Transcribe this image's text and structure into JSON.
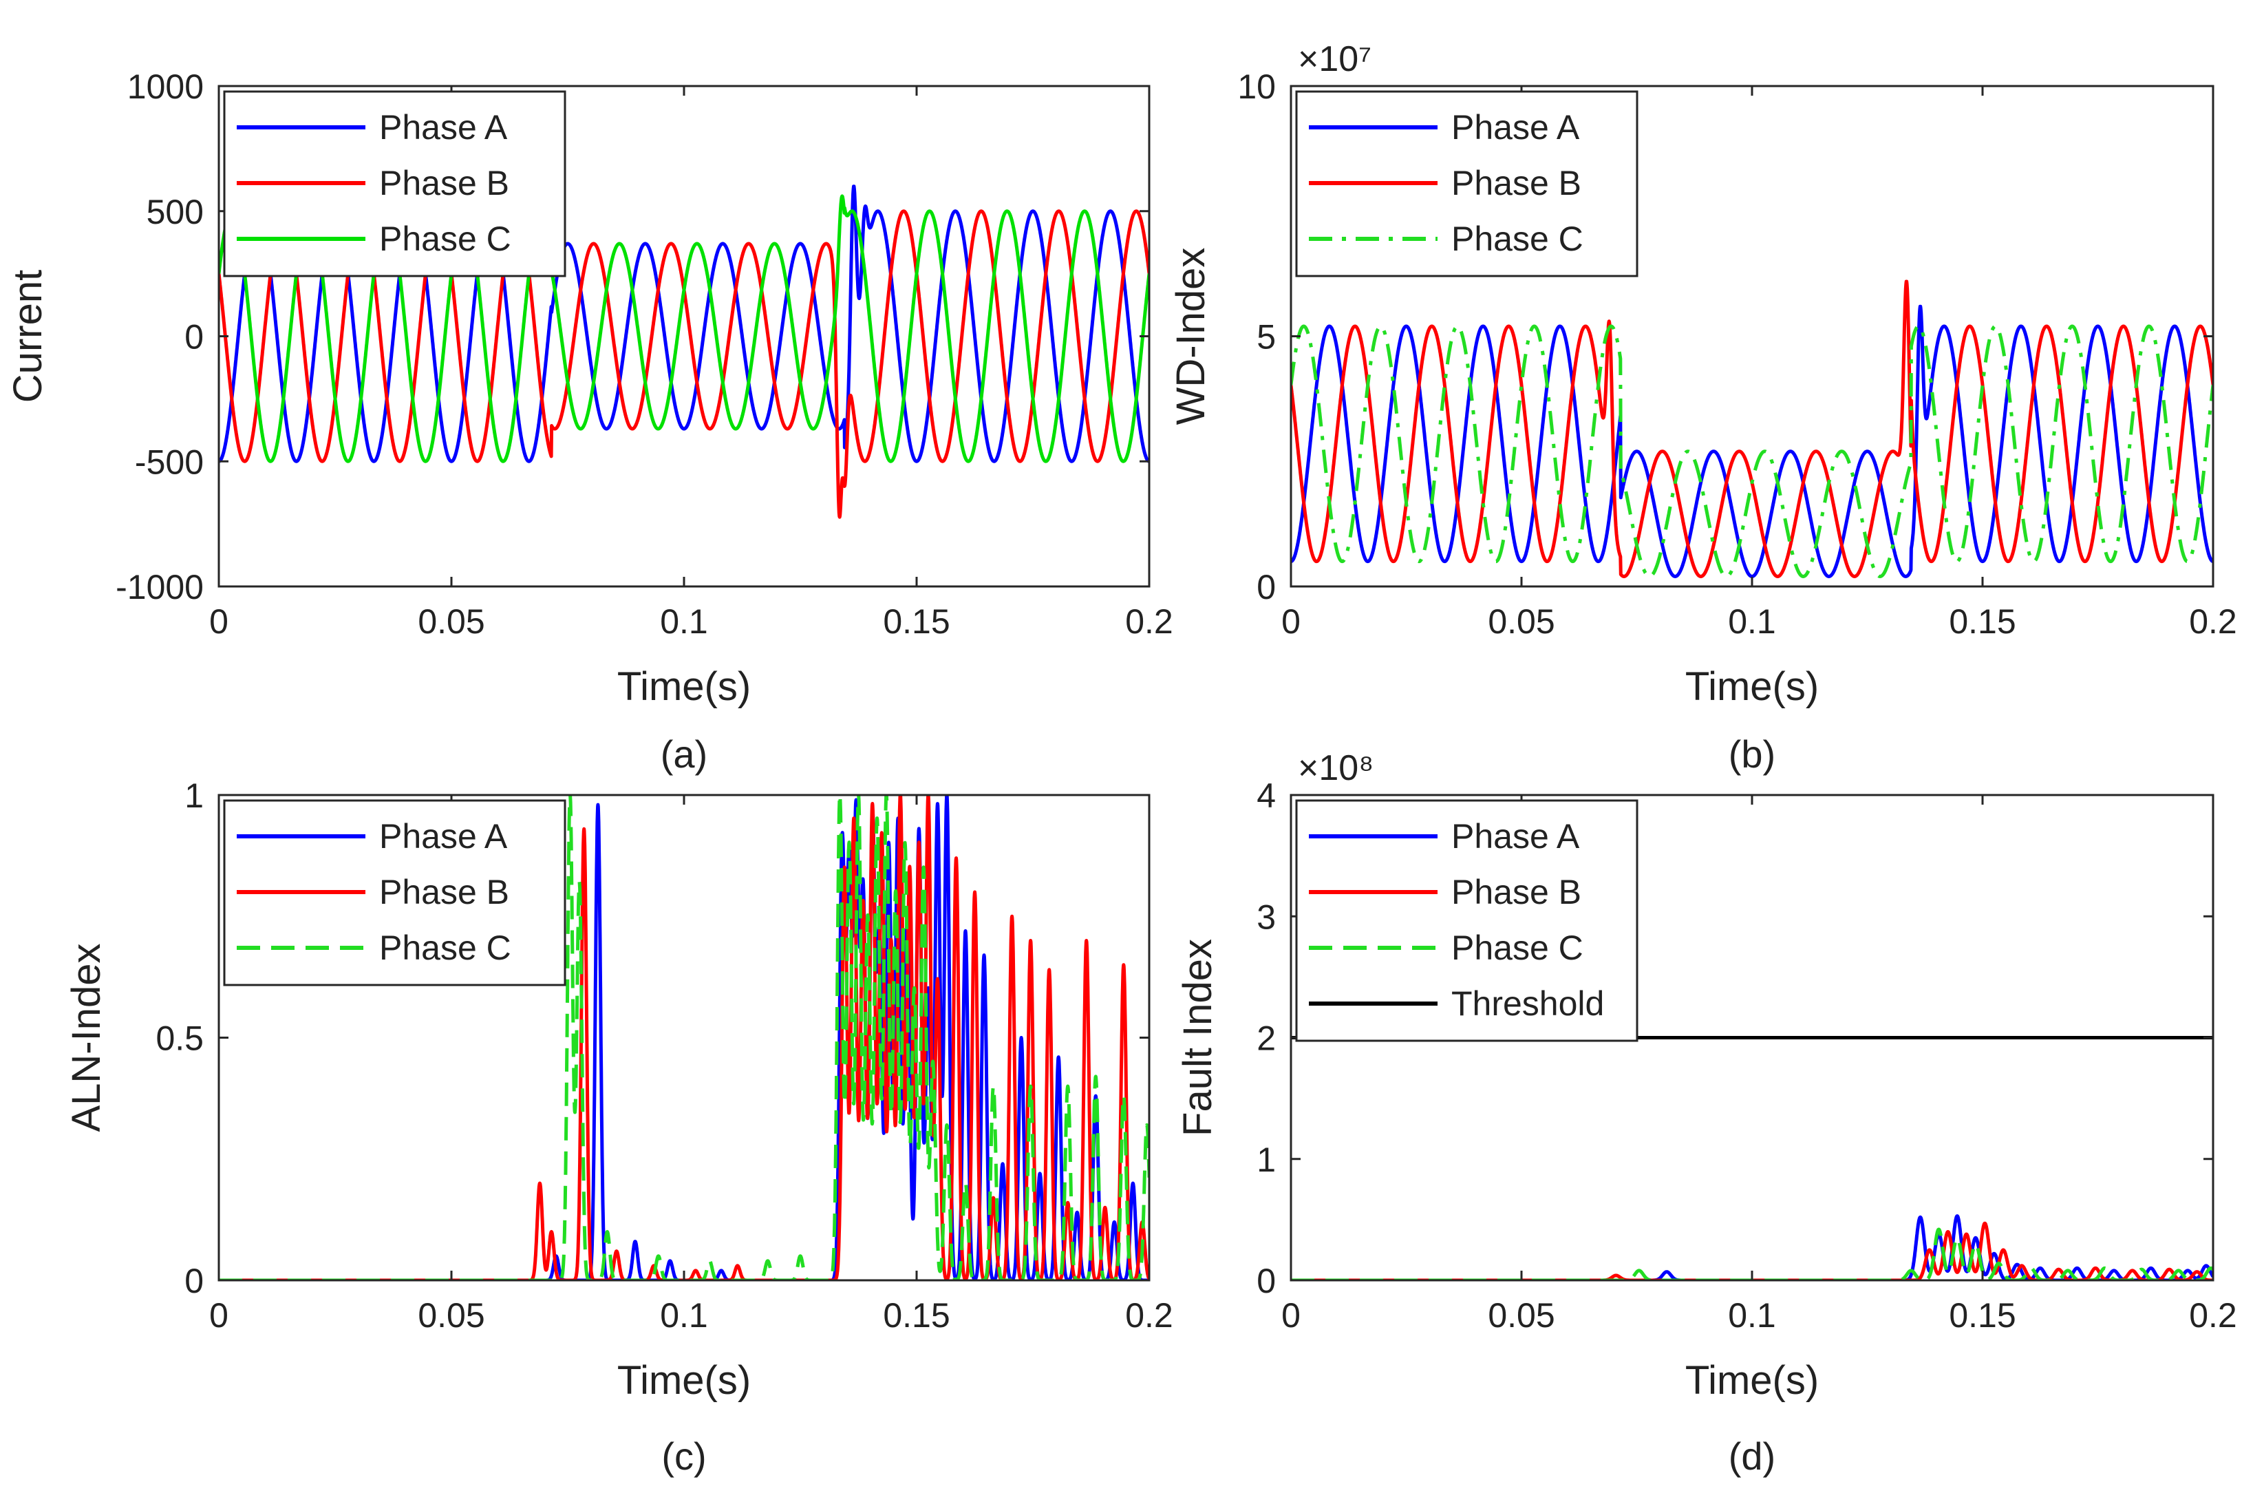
{
  "figure": {
    "panel_labels": [
      "(a)",
      "(b)",
      "(c)",
      "(d)"
    ]
  },
  "chart_data": [
    {
      "id": "a",
      "type": "line",
      "caption": "(a)",
      "xlabel": "Time(s)",
      "ylabel": "Current",
      "xlim": [
        0,
        0.2
      ],
      "ylim": [
        -1000,
        1000
      ],
      "xticks": [
        0,
        0.05,
        0.1,
        0.15,
        0.2
      ],
      "xtick_labels": [
        "0",
        "0.05",
        "0.1",
        "0.15",
        "0.2"
      ],
      "yticks": [
        -1000,
        -500,
        0,
        500,
        1000
      ],
      "ytick_labels": [
        "-1000",
        "-500",
        "0",
        "500",
        "1000"
      ],
      "exponent": "",
      "legend_position": "top-left",
      "series": [
        {
          "name": "Phase A",
          "color": "#0000ff",
          "dash": "solid",
          "model": "three_phase",
          "phase_deg": -90,
          "freq": 60,
          "segments": [
            {
              "t0": 0,
              "t1": 0.0715,
              "amp": 500,
              "offset": 0
            },
            {
              "t0": 0.0715,
              "t1": 0.1345,
              "amp": 370,
              "offset": 0
            },
            {
              "t0": 0.1345,
              "t1": 0.2,
              "amp": 500,
              "offset": 0
            }
          ],
          "spikes": [
            {
              "t": 0.1365,
              "v": 600
            },
            {
              "t": 0.139,
              "v": 520
            }
          ]
        },
        {
          "name": "Phase B",
          "color": "#ff0000",
          "dash": "solid",
          "model": "three_phase",
          "phase_deg": 150,
          "freq": 60,
          "segments": [
            {
              "t0": 0,
              "t1": 0.0715,
              "amp": 500,
              "offset": 0
            },
            {
              "t0": 0.0715,
              "t1": 0.1345,
              "amp": 370,
              "offset": 0
            },
            {
              "t0": 0.1345,
              "t1": 0.2,
              "amp": 500,
              "offset": 0
            }
          ],
          "spikes": [
            {
              "t": 0.1335,
              "v": -760
            },
            {
              "t": 0.1345,
              "v": -600
            }
          ]
        },
        {
          "name": "Phase C",
          "color": "#00e000",
          "dash": "solid",
          "model": "three_phase",
          "phase_deg": 30,
          "freq": 60,
          "segments": [
            {
              "t0": 0,
              "t1": 0.0715,
              "amp": 500,
              "offset": 0
            },
            {
              "t0": 0.0715,
              "t1": 0.1345,
              "amp": 370,
              "offset": 0
            },
            {
              "t0": 0.1345,
              "t1": 0.2,
              "amp": 500,
              "offset": 0
            }
          ],
          "spikes": [
            {
              "t": 0.134,
              "v": 560
            }
          ]
        }
      ]
    },
    {
      "id": "b",
      "type": "line",
      "caption": "(b)",
      "xlabel": "Time(s)",
      "ylabel": "WD-Index",
      "xlim": [
        0,
        0.2
      ],
      "ylim": [
        0,
        10
      ],
      "xticks": [
        0,
        0.05,
        0.1,
        0.15,
        0.2
      ],
      "xtick_labels": [
        "0",
        "0.05",
        "0.1",
        "0.15",
        "0.2"
      ],
      "yticks": [
        0,
        5,
        10
      ],
      "ytick_labels": [
        "0",
        "5",
        "10"
      ],
      "exponent": "×10⁷",
      "legend_position": "top-left",
      "series": [
        {
          "name": "Phase A",
          "color": "#0000ff",
          "dash": "solid",
          "model": "three_phase",
          "phase_deg": -90,
          "freq": 60,
          "segments": [
            {
              "t0": 0,
              "t1": 0.0715,
              "amp": 2.35,
              "offset": 2.85
            },
            {
              "t0": 0.0715,
              "t1": 0.1345,
              "amp": 1.25,
              "offset": 1.45
            },
            {
              "t0": 0.1345,
              "t1": 0.2,
              "amp": 2.35,
              "offset": 2.85
            }
          ],
          "spikes": [
            {
              "t": 0.1365,
              "v": 5.6
            }
          ]
        },
        {
          "name": "Phase B",
          "color": "#ff0000",
          "dash": "solid",
          "model": "three_phase",
          "phase_deg": 150,
          "freq": 60,
          "segments": [
            {
              "t0": 0,
              "t1": 0.0715,
              "amp": 2.35,
              "offset": 2.85
            },
            {
              "t0": 0.0715,
              "t1": 0.1345,
              "amp": 1.25,
              "offset": 1.45
            },
            {
              "t0": 0.1345,
              "t1": 0.2,
              "amp": 2.35,
              "offset": 2.85
            }
          ],
          "spikes": [
            {
              "t": 0.1335,
              "v": 6.1
            },
            {
              "t": 0.069,
              "v": 5.3
            }
          ]
        },
        {
          "name": "Phase C",
          "color": "#22dd22",
          "dash": "dashdot",
          "model": "three_phase",
          "phase_deg": 30,
          "freq": 60,
          "segments": [
            {
              "t0": 0,
              "t1": 0.0715,
              "amp": 2.35,
              "offset": 2.85
            },
            {
              "t0": 0.0715,
              "t1": 0.1345,
              "amp": 1.25,
              "offset": 1.45
            },
            {
              "t0": 0.1345,
              "t1": 0.2,
              "amp": 2.35,
              "offset": 2.85
            }
          ],
          "spikes": []
        }
      ]
    },
    {
      "id": "c",
      "type": "line",
      "caption": "(c)",
      "xlabel": "Time(s)",
      "ylabel": "ALN-Index",
      "xlim": [
        0,
        0.2
      ],
      "ylim": [
        0,
        1
      ],
      "xticks": [
        0,
        0.05,
        0.1,
        0.15,
        0.2
      ],
      "xtick_labels": [
        "0",
        "0.05",
        "0.1",
        "0.15",
        "0.2"
      ],
      "yticks": [
        0,
        0.5,
        1
      ],
      "ytick_labels": [
        "0",
        "0.5",
        "1"
      ],
      "exponent": "",
      "legend_position": "top-left",
      "series": [
        {
          "name": "Phase A",
          "color": "#0000ff",
          "dash": "solid",
          "model": "peaks",
          "width": 0.00055,
          "peaks": [
            [
              0.0725,
              0.05
            ],
            [
              0.0815,
              0.98
            ],
            [
              0.0895,
              0.08
            ],
            [
              0.097,
              0.04
            ],
            [
              0.108,
              0.02
            ],
            [
              0.134,
              0.9
            ],
            [
              0.1355,
              0.85
            ],
            [
              0.137,
              0.95
            ],
            [
              0.1385,
              0.8
            ],
            [
              0.1405,
              0.95
            ],
            [
              0.142,
              0.7
            ],
            [
              0.144,
              0.9
            ],
            [
              0.146,
              0.95
            ],
            [
              0.148,
              0.75
            ],
            [
              0.1505,
              0.93
            ],
            [
              0.1525,
              0.6
            ],
            [
              0.1545,
              0.98
            ],
            [
              0.1565,
              1.0
            ],
            [
              0.1605,
              0.72
            ],
            [
              0.1645,
              0.67
            ],
            [
              0.1685,
              0.24
            ],
            [
              0.1725,
              0.5
            ],
            [
              0.1765,
              0.22
            ],
            [
              0.1805,
              0.46
            ],
            [
              0.1845,
              0.14
            ],
            [
              0.1885,
              0.38
            ],
            [
              0.1925,
              0.12
            ],
            [
              0.1965,
              0.2
            ]
          ]
        },
        {
          "name": "Phase B",
          "color": "#ff0000",
          "dash": "solid",
          "model": "peaks",
          "width": 0.00055,
          "peaks": [
            [
              0.069,
              0.2
            ],
            [
              0.0715,
              0.1
            ],
            [
              0.0785,
              0.93
            ],
            [
              0.0855,
              0.06
            ],
            [
              0.0935,
              0.03
            ],
            [
              0.1025,
              0.02
            ],
            [
              0.1115,
              0.03
            ],
            [
              0.1345,
              0.85
            ],
            [
              0.1365,
              0.95
            ],
            [
              0.1385,
              0.78
            ],
            [
              0.1405,
              0.98
            ],
            [
              0.1425,
              0.92
            ],
            [
              0.1445,
              0.7
            ],
            [
              0.1465,
              1.0
            ],
            [
              0.1485,
              0.85
            ],
            [
              0.1505,
              0.9
            ],
            [
              0.1525,
              1.0
            ],
            [
              0.1545,
              0.62
            ],
            [
              0.1585,
              0.87
            ],
            [
              0.1625,
              0.8
            ],
            [
              0.1665,
              0.17
            ],
            [
              0.1705,
              0.75
            ],
            [
              0.1745,
              0.7
            ],
            [
              0.1785,
              0.64
            ],
            [
              0.1825,
              0.16
            ],
            [
              0.1865,
              0.7
            ],
            [
              0.1905,
              0.15
            ],
            [
              0.1945,
              0.65
            ],
            [
              0.1985,
              0.12
            ]
          ]
        },
        {
          "name": "Phase C",
          "color": "#22dd22",
          "dash": "dashed",
          "model": "peaks",
          "width": 0.00055,
          "peaks": [
            [
              0.0755,
              1.0
            ],
            [
              0.0775,
              0.82
            ],
            [
              0.0835,
              0.1
            ],
            [
              0.0945,
              0.05
            ],
            [
              0.1055,
              0.04
            ],
            [
              0.118,
              0.04
            ],
            [
              0.125,
              0.05
            ],
            [
              0.1335,
              1.0
            ],
            [
              0.1355,
              0.9
            ],
            [
              0.1375,
              1.0
            ],
            [
              0.1395,
              0.75
            ],
            [
              0.1415,
              0.95
            ],
            [
              0.1435,
              1.0
            ],
            [
              0.1455,
              0.8
            ],
            [
              0.1475,
              0.9
            ],
            [
              0.1495,
              0.6
            ],
            [
              0.1515,
              0.85
            ],
            [
              0.1535,
              0.45
            ],
            [
              0.1565,
              0.32
            ],
            [
              0.1605,
              0.2
            ],
            [
              0.1665,
              0.4
            ],
            [
              0.1745,
              0.4
            ],
            [
              0.1825,
              0.4
            ],
            [
              0.1885,
              0.42
            ],
            [
              0.1945,
              0.38
            ],
            [
              0.1995,
              0.32
            ]
          ]
        }
      ]
    },
    {
      "id": "d",
      "type": "line",
      "caption": "(d)",
      "xlabel": "Time(s)",
      "ylabel": "Fault Index",
      "xlim": [
        0,
        0.2
      ],
      "ylim": [
        0,
        4
      ],
      "xticks": [
        0,
        0.05,
        0.1,
        0.15,
        0.2
      ],
      "xtick_labels": [
        "0",
        "0.05",
        "0.1",
        "0.15",
        "0.2"
      ],
      "yticks": [
        0,
        1,
        2,
        3,
        4
      ],
      "ytick_labels": [
        "0",
        "1",
        "2",
        "3",
        "4"
      ],
      "exponent": "×10⁸",
      "legend_position": "top-left",
      "series": [
        {
          "name": "Phase A",
          "color": "#0000ff",
          "dash": "solid",
          "model": "peaks",
          "width": 0.0009,
          "peaks": [
            [
              0.0815,
              0.07
            ],
            [
              0.1365,
              0.52
            ],
            [
              0.1405,
              0.38
            ],
            [
              0.1445,
              0.53
            ],
            [
              0.1485,
              0.35
            ],
            [
              0.1525,
              0.22
            ],
            [
              0.1575,
              0.13
            ],
            [
              0.1625,
              0.1
            ],
            [
              0.1705,
              0.1
            ],
            [
              0.1785,
              0.08
            ],
            [
              0.1865,
              0.1
            ],
            [
              0.1945,
              0.08
            ],
            [
              0.1985,
              0.12
            ]
          ]
        },
        {
          "name": "Phase B",
          "color": "#ff0000",
          "dash": "solid",
          "model": "peaks",
          "width": 0.0009,
          "peaks": [
            [
              0.0705,
              0.04
            ],
            [
              0.1385,
              0.25
            ],
            [
              0.1425,
              0.4
            ],
            [
              0.1465,
              0.38
            ],
            [
              0.1505,
              0.47
            ],
            [
              0.1545,
              0.25
            ],
            [
              0.1585,
              0.12
            ],
            [
              0.1665,
              0.09
            ],
            [
              0.1745,
              0.1
            ],
            [
              0.1825,
              0.08
            ],
            [
              0.1905,
              0.09
            ],
            [
              0.1965,
              0.07
            ]
          ]
        },
        {
          "name": "Phase C",
          "color": "#22dd22",
          "dash": "dashed",
          "model": "peaks",
          "width": 0.0009,
          "peaks": [
            [
              0.0755,
              0.08
            ],
            [
              0.1345,
              0.08
            ],
            [
              0.1405,
              0.42
            ],
            [
              0.1445,
              0.35
            ],
            [
              0.1485,
              0.3
            ],
            [
              0.1535,
              0.14
            ],
            [
              0.1605,
              0.1
            ],
            [
              0.1685,
              0.08
            ],
            [
              0.1765,
              0.1
            ],
            [
              0.1845,
              0.09
            ],
            [
              0.1925,
              0.08
            ],
            [
              0.1995,
              0.1
            ]
          ]
        },
        {
          "name": "Threshold",
          "color": "#000000",
          "dash": "solid",
          "model": "constant",
          "value": 2
        }
      ]
    }
  ]
}
